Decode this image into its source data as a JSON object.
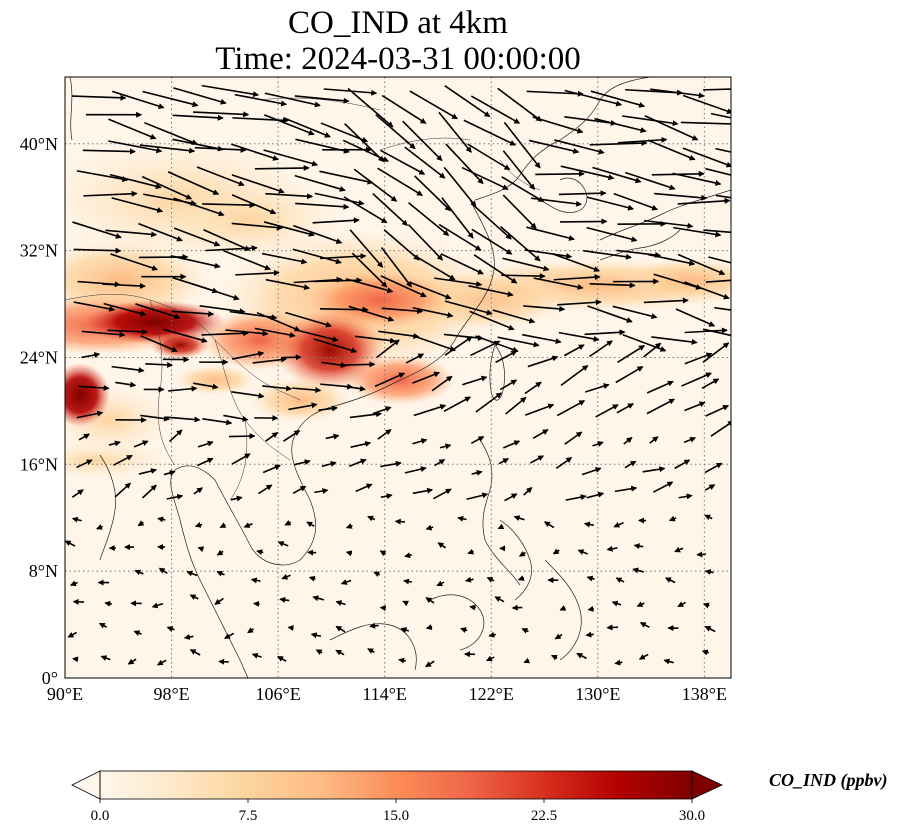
{
  "title": {
    "line1": "CO_IND at 4km",
    "line2": "Time: 2024-03-31 00:00:00"
  },
  "map": {
    "variable": "CO_IND",
    "level": "4km",
    "time": "2024-03-31 00:00:00",
    "extent": {
      "lon": [
        90,
        140
      ],
      "lat": [
        0,
        45
      ]
    },
    "lon_ticks": [
      "90°E",
      "98°E",
      "106°E",
      "114°E",
      "122°E",
      "130°E",
      "138°E"
    ],
    "lat_ticks": [
      "0°",
      "8°N",
      "16°N",
      "24°N",
      "32°N",
      "40°N"
    ],
    "gridlines": true,
    "features": [
      "coastlines",
      "country borders",
      "wind vectors"
    ]
  },
  "colorbar": {
    "label": "CO_IND (ppbv)",
    "colormap": "OrRd",
    "range": [
      0.0,
      30.0
    ],
    "ticks": [
      "0.0",
      "7.5",
      "15.0",
      "22.5",
      "30.0"
    ],
    "extend": "both",
    "colors": [
      "#fff7ec",
      "#fdd49e",
      "#fc8d59",
      "#d7301f",
      "#7f0000"
    ]
  },
  "chart_data": {
    "type": "heatmap",
    "title": "CO_IND at 4km\nTime: 2024-03-31 00:00:00",
    "xlabel": "",
    "ylabel": "",
    "xlim": [
      90,
      140
    ],
    "ylim": [
      0,
      45
    ],
    "x_ticks": [
      90,
      98,
      106,
      114,
      122,
      130,
      138
    ],
    "y_ticks": [
      0,
      8,
      16,
      24,
      32,
      40
    ],
    "value_range": [
      0.0,
      30.0
    ],
    "units": "ppbv",
    "high_regions": [
      {
        "lon": 97,
        "lat": 26.3,
        "value": 30
      },
      {
        "lon": 91,
        "lat": 21.5,
        "value": 28
      },
      {
        "lon": 108.5,
        "lat": 24.3,
        "value": 27
      },
      {
        "lon": 116,
        "lat": 27.8,
        "value": 18
      },
      {
        "lon": 97.5,
        "lat": 34.5,
        "value": 10
      },
      {
        "lon": 123,
        "lat": 29.0,
        "value": 8
      },
      {
        "lon": 93,
        "lat": 16.5,
        "value": 6
      }
    ]
  }
}
